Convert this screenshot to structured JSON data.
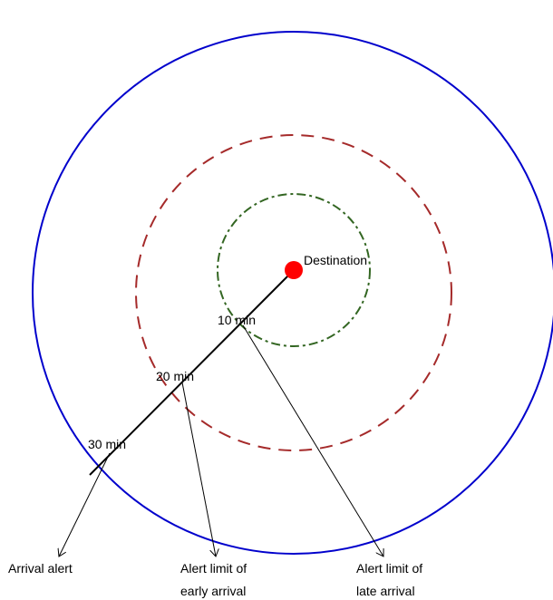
{
  "colors": {
    "outer_circle": "#0000cc",
    "middle_circle": "#a52a2a",
    "inner_circle": "#336622",
    "destination": "#ff0000",
    "route": "#000000",
    "annotation": "#000000"
  },
  "destination": {
    "label": "Destination"
  },
  "time_marks": {
    "ten": "10 min",
    "twenty": "20 min",
    "thirty": "30 min"
  },
  "annotations": {
    "arrival_alert": "Arrival alert",
    "early_line1": "Alert limit of",
    "early_line2": "early arrival",
    "late_line1": "Alert limit of",
    "late_line2": "late arrival"
  }
}
